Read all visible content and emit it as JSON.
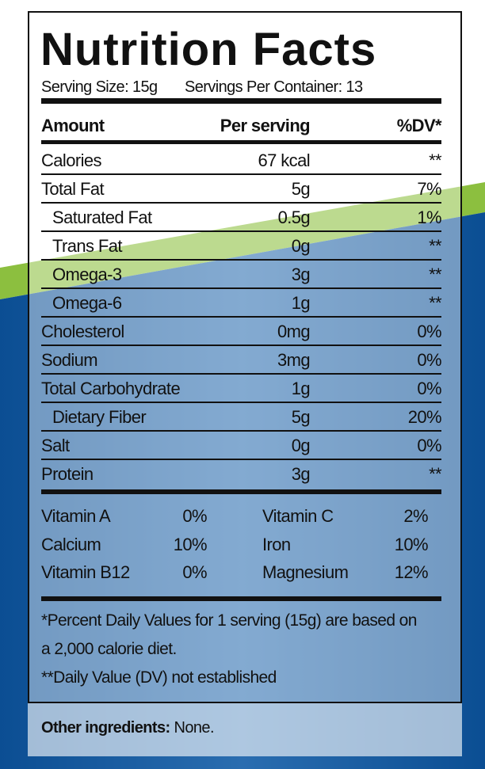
{
  "title": "Nutrition Facts",
  "serving": {
    "size": "Serving Size: 15g",
    "servings": "Servings Per Container: 13"
  },
  "table": {
    "header": [
      "Amount",
      "Per serving",
      "%DV*"
    ],
    "rows": [
      [
        "Calories",
        "67 kcal",
        "**"
      ],
      [
        "Total Fat",
        "5g",
        "7%"
      ],
      [
        "Saturated Fat",
        "0.5g",
        "1%"
      ],
      [
        "Trans Fat",
        "0g",
        "**"
      ],
      [
        "Omega-3",
        "3g",
        "**"
      ],
      [
        "Omega-6",
        "1g",
        "**"
      ],
      [
        "Cholesterol",
        "0mg",
        "0%"
      ],
      [
        "Sodium",
        "3mg",
        "0%"
      ],
      [
        "Total Carbohydrate",
        "1g",
        "0%"
      ],
      [
        "Dietary Fiber",
        "5g",
        "20%"
      ],
      [
        "Salt",
        "0g",
        "0%"
      ],
      [
        "Protein",
        "3g",
        "**"
      ]
    ]
  },
  "vitamins": {
    "rows": [
      [
        "Vitamin A",
        "0%",
        "Vitamin C",
        "2%"
      ],
      [
        "Calcium",
        "10%",
        "Iron",
        "10%"
      ],
      [
        "Vitamin B12",
        "0%",
        "Magnesium",
        "12%"
      ]
    ]
  },
  "footnotes": [
    "*Percent Daily Values for 1 serving (15g) are based on",
    "a 2,000 calorie diet.",
    "**Daily Value (DV) not established"
  ],
  "ingredients": {
    "label": "Other ingredients:",
    "text": "None."
  }
}
